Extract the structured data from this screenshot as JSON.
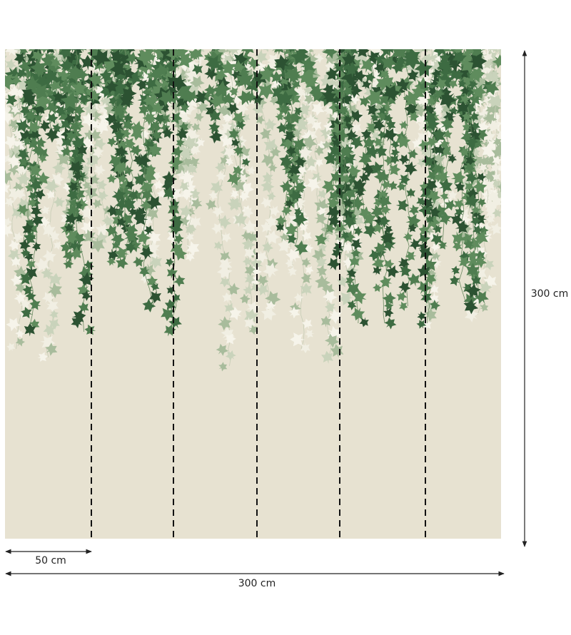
{
  "dimensions": {
    "height": {
      "label": "300 cm"
    },
    "panel_width": {
      "label": "50 cm"
    },
    "total_width": {
      "label": "300 cm"
    }
  }
}
